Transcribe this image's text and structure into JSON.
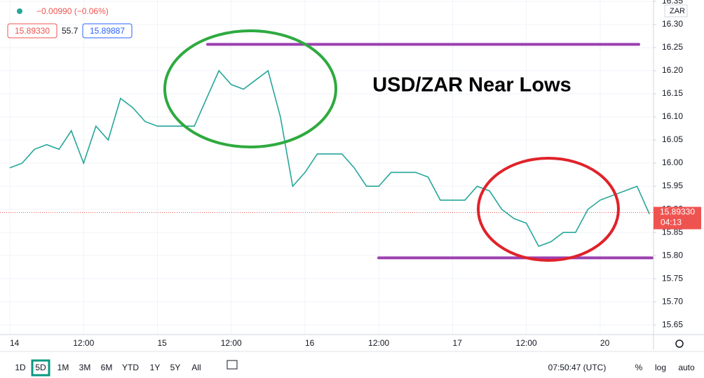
{
  "chart_data": {
    "type": "line",
    "title": "USD/ZAR Near Lows",
    "currency": "ZAR",
    "change": "−0.00990 (−0.06%)",
    "bid": "15.89330",
    "spread": "55.7",
    "ask": "15.89887",
    "categories": [
      "14",
      null,
      null,
      null,
      null,
      null,
      "12:00",
      null,
      null,
      null,
      null,
      null,
      "15",
      null,
      null,
      null,
      null,
      null,
      "12:00",
      null,
      null,
      null,
      null,
      null,
      "16",
      null,
      null,
      null,
      null,
      null,
      "12:00",
      null,
      null,
      null,
      null,
      null,
      "17",
      null,
      null,
      null,
      null,
      null,
      "12:00",
      null,
      null,
      null,
      null,
      null,
      "20",
      null,
      null,
      null,
      null
    ],
    "series": [
      {
        "color": "#26a69a",
        "values": [
          15.99,
          16.0,
          16.03,
          16.04,
          16.03,
          16.07,
          16.0,
          16.08,
          16.05,
          16.14,
          16.12,
          16.09,
          16.08,
          16.08,
          16.08,
          16.08,
          16.14,
          16.2,
          16.17,
          16.16,
          16.18,
          16.2,
          16.1,
          15.95,
          15.98,
          16.02,
          16.02,
          16.02,
          15.99,
          15.95,
          15.95,
          15.98,
          15.98,
          15.98,
          15.97,
          15.92,
          15.92,
          15.92,
          15.95,
          15.94,
          15.9,
          15.88,
          15.87,
          15.82,
          15.83,
          15.85,
          15.85,
          15.9,
          15.92,
          15.93,
          15.94,
          15.95,
          15.89
        ]
      }
    ],
    "ylim": [
      15.629,
      16.353
    ],
    "yticks": [
      {
        "value": 15.65,
        "label": "15.65"
      },
      {
        "value": 15.7,
        "label": "15.70"
      },
      {
        "value": 15.75,
        "label": "15.75"
      },
      {
        "value": 15.8,
        "label": "15.80"
      },
      {
        "value": 15.85,
        "label": "15.85"
      },
      {
        "value": 15.9,
        "label": "15.90"
      },
      {
        "value": 15.95,
        "label": "15.95"
      },
      {
        "value": 16.0,
        "label": "16.00"
      },
      {
        "value": 16.05,
        "label": "16.05"
      },
      {
        "value": 16.1,
        "label": "16.10"
      },
      {
        "value": 16.15,
        "label": "16.15"
      },
      {
        "value": 16.2,
        "label": "16.20"
      },
      {
        "value": 16.25,
        "label": "16.25"
      },
      {
        "value": 16.3,
        "label": "16.30"
      },
      {
        "value": 16.35,
        "label": "16.35"
      }
    ],
    "grid": true,
    "last_price": {
      "value": 15.8933,
      "label": "15.89330"
    },
    "countdown": "04:13",
    "resistance": 16.257,
    "support": 15.795,
    "line_color": "#9c3fb0"
  },
  "toolbar": {
    "ranges": [
      "1D",
      "5D",
      "1M",
      "3M",
      "6M",
      "YTD",
      "1Y",
      "5Y",
      "All"
    ],
    "active": "5D",
    "clock": "07:50:47 (UTC)",
    "percent": "%",
    "log": "log",
    "auto": "auto"
  }
}
